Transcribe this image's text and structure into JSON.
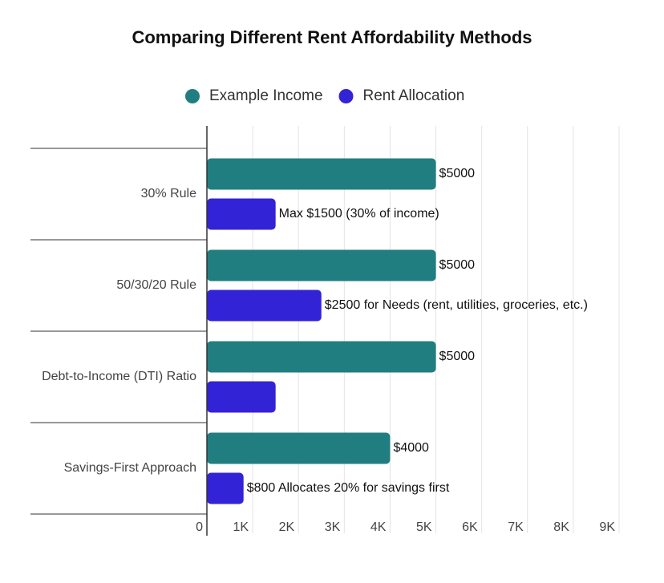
{
  "chart_data": {
    "type": "bar",
    "orientation": "horizontal",
    "title": "Comparing Different Rent Affordability Methods",
    "categories": [
      "30% Rule",
      "50/30/20 Rule",
      "Debt-to-Income (DTI) Ratio",
      "Savings-First Approach"
    ],
    "series": [
      {
        "name": "Example Income",
        "color": "#217e80",
        "values": [
          5000,
          5000,
          5000,
          4000
        ],
        "value_labels": [
          "$5000",
          "$5000",
          "$5000",
          "$4000"
        ]
      },
      {
        "name": "Rent Allocation",
        "color": "#3323d6",
        "values": [
          1500,
          2500,
          1500,
          800
        ],
        "value_labels": [
          "Max $1500 (30% of income)",
          "$2500 for Needs (rent, utilities, groceries, etc.)",
          null,
          "$800 Allocates 20% for savings first"
        ]
      }
    ],
    "xlim": [
      0,
      9000
    ],
    "xticks": [
      0,
      {
        "value": 1000,
        "label": "1K"
      },
      {
        "value": 2000,
        "label": "2K"
      },
      {
        "value": 3000,
        "label": "3K"
      },
      {
        "value": 4000,
        "label": "4K"
      },
      {
        "value": 5000,
        "label": "5K"
      },
      {
        "value": 6000,
        "label": "6K"
      },
      {
        "value": 7000,
        "label": "7K"
      },
      {
        "value": 8000,
        "label": "8K"
      },
      {
        "value": 9000,
        "label": "9K"
      }
    ],
    "grid": true,
    "legend": "top"
  }
}
